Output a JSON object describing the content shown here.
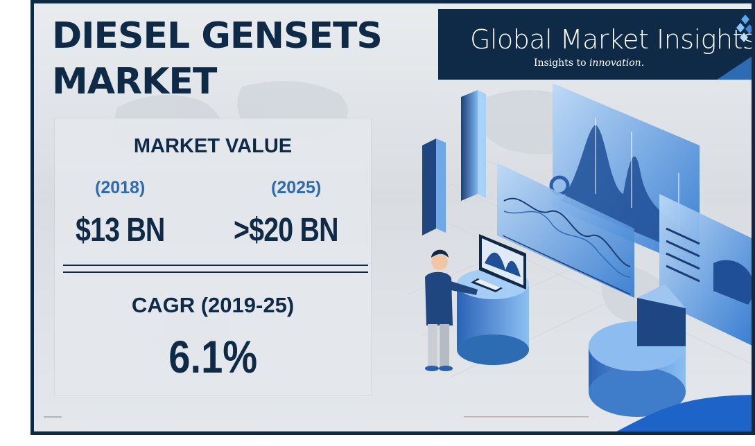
{
  "title": {
    "line1": "DIESEL GENSETS",
    "line2": "MARKET"
  },
  "brand": {
    "name": "Global Market Insights",
    "tagline_prefix": "Insights to ",
    "tagline_italic": "innovation.",
    "logo_icon": "diamond-cluster-icon",
    "color": "#0f2a47"
  },
  "market_value": {
    "heading": "MARKET VALUE",
    "start_year": "(2018)",
    "start_value": "$13 BN",
    "end_year": "(2025)",
    "end_value": ">$20 BN"
  },
  "cagr": {
    "heading": "CAGR (2019-25)",
    "value": "6.1%"
  },
  "colors": {
    "navy": "#0f2a47",
    "accent_blue": "#2d6bb3",
    "light_blue": "#5aa6f0"
  }
}
